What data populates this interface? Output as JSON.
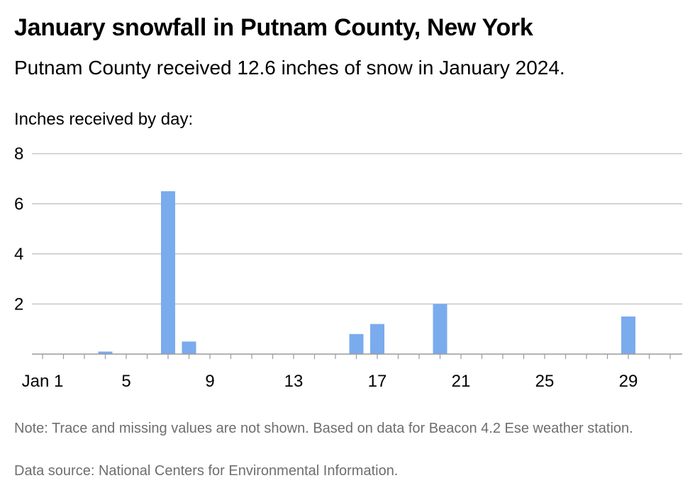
{
  "header": {
    "title": "January snowfall in Putnam County, New York",
    "subtitle": "Putnam County received 12.6 inches of snow in January 2024.",
    "axis_label": "Inches received by day:"
  },
  "footer": {
    "note": "Note: Trace and missing values are not shown. Based on data for Beacon 4.2 Ese weather station.",
    "source": "Data source: National Centers for Environmental Information."
  },
  "colors": {
    "bar": "#7aabed",
    "grid": "#bdbdbd",
    "axis": "#9a9a9a"
  },
  "chart_data": {
    "type": "bar",
    "title": "January snowfall in Putnam County, New York",
    "subtitle": "Putnam County received 12.6 inches of snow in January 2024.",
    "ylabel": "Inches received by day:",
    "xlabel": "",
    "x_ticks": [
      "Jan 1",
      "5",
      "9",
      "13",
      "17",
      "21",
      "25",
      "29"
    ],
    "y_ticks": [
      2,
      4,
      6,
      8
    ],
    "ylim": [
      0,
      8
    ],
    "xlim": [
      1,
      31
    ],
    "grid": true,
    "x": [
      4,
      7,
      8,
      16,
      17,
      20,
      29
    ],
    "values": [
      0.1,
      6.5,
      0.5,
      0.8,
      1.2,
      2.0,
      1.5
    ]
  }
}
